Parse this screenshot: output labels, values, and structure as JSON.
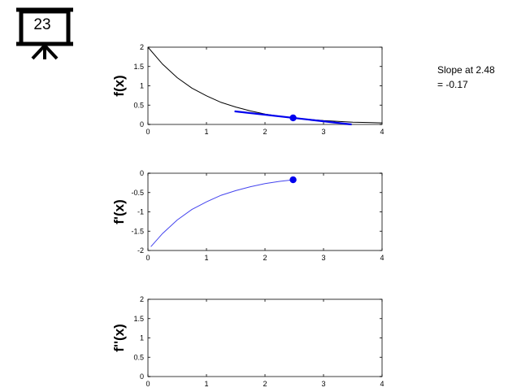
{
  "badge": {
    "number": "23",
    "icon": "presentation-board-icon"
  },
  "annotation": {
    "line1": "Slope at 2.48",
    "line2": "= -0.17"
  },
  "colors": {
    "curve": "#000000",
    "tangent": "#0000ee",
    "derivative": "#4444ee",
    "point": "#0000ee",
    "axis_zero": "#7f7f7f"
  },
  "chart_data": [
    {
      "type": "line",
      "ylabel": "f(x)",
      "xlim": [
        0,
        4
      ],
      "ylim": [
        0,
        2
      ],
      "xticks": [
        "0",
        "1",
        "2",
        "3",
        "4"
      ],
      "yticks": [
        "0",
        "0.5",
        "1",
        "1.5",
        "2"
      ],
      "series": [
        {
          "x": [
            0,
            0.25,
            0.5,
            0.75,
            1,
            1.25,
            1.5,
            1.75,
            2,
            2.25,
            2.5,
            2.75,
            3,
            3.25,
            3.5,
            3.75,
            4
          ],
          "y": [
            2,
            1.56,
            1.21,
            0.94,
            0.74,
            0.57,
            0.45,
            0.35,
            0.27,
            0.21,
            0.16,
            0.13,
            0.1,
            0.08,
            0.06,
            0.05,
            0.04
          ]
        }
      ],
      "tangent": {
        "x": [
          1.48,
          3.48
        ],
        "y": [
          0.34,
          0.0
        ]
      },
      "point": {
        "x": 2.48,
        "y": 0.17
      }
    },
    {
      "type": "line",
      "ylabel": "f'(x)",
      "xlim": [
        0,
        4
      ],
      "ylim": [
        -2,
        0
      ],
      "xticks": [
        "0",
        "1",
        "2",
        "3",
        "4"
      ],
      "yticks": [
        "-2",
        "-1.5",
        "-1",
        "-0.5",
        "0"
      ],
      "series": [
        {
          "x": [
            0.05,
            0.25,
            0.5,
            0.75,
            1,
            1.25,
            1.5,
            1.75,
            2,
            2.25,
            2.48
          ],
          "y": [
            -1.9,
            -1.56,
            -1.21,
            -0.94,
            -0.74,
            -0.57,
            -0.45,
            -0.35,
            -0.27,
            -0.21,
            -0.17
          ]
        }
      ],
      "point": {
        "x": 2.48,
        "y": -0.17
      }
    },
    {
      "type": "line",
      "ylabel": "f''(x)",
      "xlim": [
        0,
        4
      ],
      "ylim": [
        0,
        2
      ],
      "xticks": [
        "0",
        "1",
        "2",
        "3",
        "4"
      ],
      "yticks": [
        "0",
        "0.5",
        "1",
        "1.5",
        "2"
      ],
      "series": []
    }
  ]
}
